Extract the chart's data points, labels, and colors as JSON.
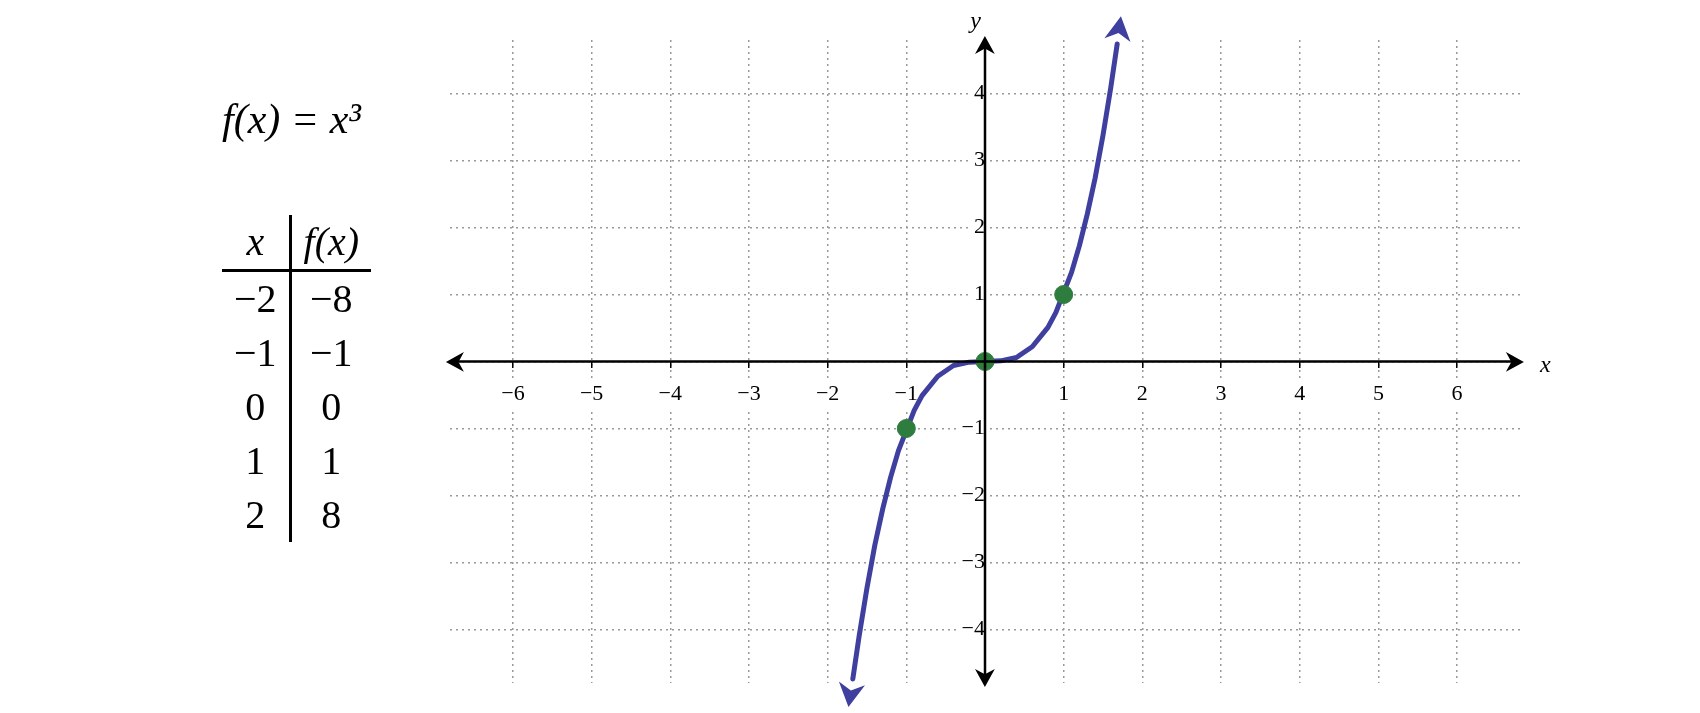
{
  "chart_data": {
    "type": "line",
    "title": "f(x) = x³",
    "xlabel": "x",
    "ylabel": "y",
    "xlim": [
      -6.8,
      6.8
    ],
    "ylim": [
      -4.8,
      4.8
    ],
    "xticks": [
      {
        "value": -6,
        "label": "−6"
      },
      {
        "value": -5,
        "label": "−5"
      },
      {
        "value": -4,
        "label": "−4"
      },
      {
        "value": -3,
        "label": "−3"
      },
      {
        "value": -2,
        "label": "−2"
      },
      {
        "value": -1,
        "label": "−1"
      },
      {
        "value": 0,
        "label": null
      },
      1,
      2,
      3,
      4,
      5,
      6
    ],
    "yticks": [
      {
        "value": -4,
        "label": "−4"
      },
      {
        "value": -3,
        "label": "−3"
      },
      {
        "value": -2,
        "label": "−2"
      },
      {
        "value": -1,
        "label": "−1"
      },
      {
        "value": 0,
        "label": null
      },
      1,
      2,
      3,
      4
    ],
    "grid": true,
    "series": [
      {
        "type": "line",
        "color": "#3f3f9f",
        "marker": "none",
        "x": [
          -1.68,
          -1.6,
          -1.5,
          -1.4,
          -1.3,
          -1.2,
          -1.1,
          -0.9,
          -0.8,
          -0.6,
          -0.4,
          -0.2,
          0,
          0.2,
          0.4,
          0.6,
          0.8,
          0.9,
          1.1,
          1.2,
          1.3,
          1.4,
          1.5,
          1.6,
          1.68
        ],
        "values": [
          -4.74,
          -4.1,
          -3.38,
          -2.74,
          -2.2,
          -1.73,
          -1.33,
          -0.73,
          -0.51,
          -0.22,
          -0.06,
          -0.01,
          0,
          0.01,
          0.06,
          0.22,
          0.51,
          0.73,
          1.33,
          1.73,
          2.2,
          2.74,
          3.38,
          4.1,
          4.74
        ]
      },
      {
        "type": "scatter",
        "color": "#2e7d3e",
        "marker": "circle",
        "x": [
          -1,
          0,
          1
        ],
        "values": [
          -1,
          0,
          1
        ]
      }
    ],
    "annotations": [
      "x",
      "f(x)",
      "−2",
      "−8",
      "−1",
      "−1",
      "0",
      "0",
      "1",
      "1",
      "2",
      "8"
    ]
  }
}
